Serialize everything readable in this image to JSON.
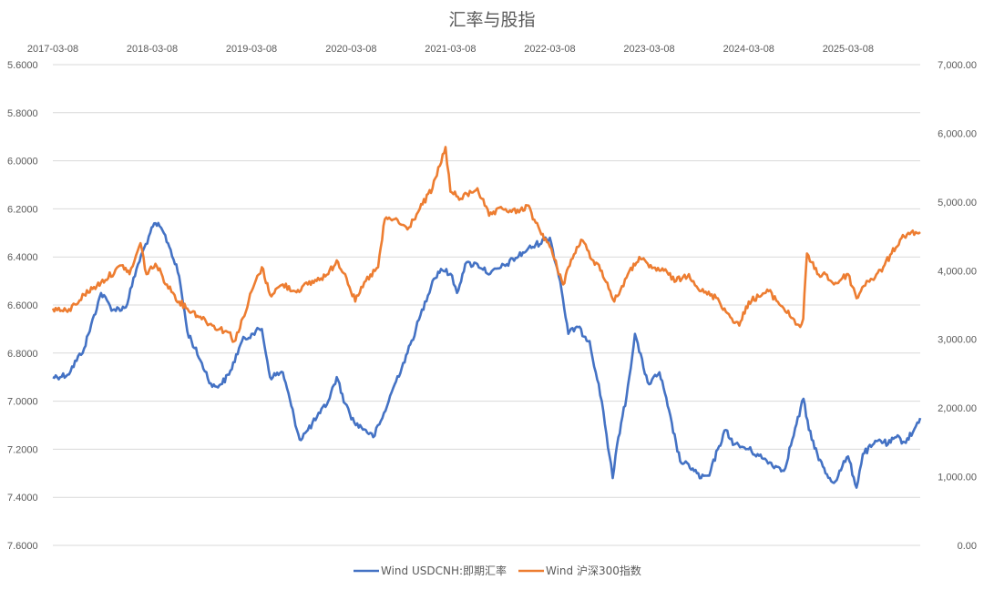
{
  "chart_data": {
    "type": "line",
    "title": "汇率与股指",
    "x_ticks": [
      "2017-03-08",
      "2018-03-08",
      "2019-03-08",
      "2020-03-08",
      "2021-03-08",
      "2022-03-08",
      "2023-03-08",
      "2024-03-08",
      "2025-03-08"
    ],
    "x_range": [
      "2017-03-08",
      "2025-11-28"
    ],
    "x_axis_position": "top",
    "y_left": {
      "inverted": true,
      "range": [
        5.6,
        7.6
      ],
      "ticks": [
        "5.6000",
        "5.8000",
        "6.0000",
        "6.2000",
        "6.4000",
        "6.6000",
        "6.8000",
        "7.0000",
        "7.2000",
        "7.4000",
        "7.6000"
      ]
    },
    "y_right": {
      "range": [
        0,
        7000
      ],
      "ticks": [
        "0.00",
        "1,000.00",
        "2,000.00",
        "3,000.00",
        "4,000.00",
        "5,000.00",
        "6,000.00",
        "7,000.00"
      ]
    },
    "grid": true,
    "legend_position": "bottom",
    "series": [
      {
        "name": "Wind USDCNH:即期汇率",
        "axis": "left",
        "color": "#4472c4",
        "points": [
          [
            "2017-03-08",
            6.9
          ],
          [
            "2017-05-01",
            6.89
          ],
          [
            "2017-07-01",
            6.78
          ],
          [
            "2017-09-01",
            6.55
          ],
          [
            "2017-10-15",
            6.62
          ],
          [
            "2017-12-01",
            6.61
          ],
          [
            "2018-01-15",
            6.43
          ],
          [
            "2018-03-01",
            6.3
          ],
          [
            "2018-03-20",
            6.26
          ],
          [
            "2018-04-15",
            6.29
          ],
          [
            "2018-05-15",
            6.37
          ],
          [
            "2018-06-15",
            6.48
          ],
          [
            "2018-07-15",
            6.71
          ],
          [
            "2018-09-01",
            6.83
          ],
          [
            "2018-10-15",
            6.94
          ],
          [
            "2018-11-15",
            6.93
          ],
          [
            "2018-12-15",
            6.89
          ],
          [
            "2019-02-01",
            6.75
          ],
          [
            "2019-03-08",
            6.72
          ],
          [
            "2019-04-15",
            6.7
          ],
          [
            "2019-05-15",
            6.9
          ],
          [
            "2019-07-01",
            6.88
          ],
          [
            "2019-08-01",
            7.02
          ],
          [
            "2019-09-01",
            7.16
          ],
          [
            "2019-10-01",
            7.12
          ],
          [
            "2019-11-15",
            7.05
          ],
          [
            "2019-12-15",
            7.0
          ],
          [
            "2020-01-15",
            6.9
          ],
          [
            "2020-02-15",
            7.01
          ],
          [
            "2020-03-20",
            7.09
          ],
          [
            "2020-05-01",
            7.12
          ],
          [
            "2020-05-28",
            7.15
          ],
          [
            "2020-07-01",
            7.07
          ],
          [
            "2020-08-15",
            6.93
          ],
          [
            "2020-10-01",
            6.8
          ],
          [
            "2020-11-01",
            6.7
          ],
          [
            "2021-01-01",
            6.5
          ],
          [
            "2021-02-01",
            6.45
          ],
          [
            "2021-03-08",
            6.47
          ],
          [
            "2021-04-01",
            6.55
          ],
          [
            "2021-05-01",
            6.43
          ],
          [
            "2021-06-15",
            6.43
          ],
          [
            "2021-08-01",
            6.47
          ],
          [
            "2021-10-01",
            6.43
          ],
          [
            "2021-12-15",
            6.37
          ],
          [
            "2022-02-15",
            6.33
          ],
          [
            "2022-03-08",
            6.32
          ],
          [
            "2022-04-15",
            6.5
          ],
          [
            "2022-05-15",
            6.72
          ],
          [
            "2022-06-15",
            6.69
          ],
          [
            "2022-08-01",
            6.75
          ],
          [
            "2022-09-15",
            7.0
          ],
          [
            "2022-10-25",
            7.32
          ],
          [
            "2022-11-15",
            7.15
          ],
          [
            "2022-12-15",
            6.98
          ],
          [
            "2023-01-15",
            6.72
          ],
          [
            "2023-02-15",
            6.86
          ],
          [
            "2023-03-08",
            6.93
          ],
          [
            "2023-04-15",
            6.88
          ],
          [
            "2023-05-15",
            7.02
          ],
          [
            "2023-06-30",
            7.25
          ],
          [
            "2023-08-15",
            7.28
          ],
          [
            "2023-09-15",
            7.32
          ],
          [
            "2023-10-15",
            7.31
          ],
          [
            "2023-11-15",
            7.2
          ],
          [
            "2023-12-15",
            7.12
          ],
          [
            "2024-01-15",
            7.18
          ],
          [
            "2024-03-08",
            7.2
          ],
          [
            "2024-05-01",
            7.24
          ],
          [
            "2024-06-15",
            7.27
          ],
          [
            "2024-07-15",
            7.29
          ],
          [
            "2024-08-15",
            7.16
          ],
          [
            "2024-09-25",
            6.99
          ],
          [
            "2024-10-15",
            7.12
          ],
          [
            "2024-11-15",
            7.22
          ],
          [
            "2024-12-15",
            7.3
          ],
          [
            "2025-01-15",
            7.34
          ],
          [
            "2025-02-15",
            7.27
          ],
          [
            "2025-03-08",
            7.23
          ],
          [
            "2025-04-08",
            7.36
          ],
          [
            "2025-05-01",
            7.22
          ],
          [
            "2025-06-01",
            7.19
          ],
          [
            "2025-07-01",
            7.16
          ],
          [
            "2025-08-01",
            7.18
          ],
          [
            "2025-09-01",
            7.15
          ],
          [
            "2025-10-01",
            7.17
          ],
          [
            "2025-11-01",
            7.13
          ],
          [
            "2025-11-28",
            7.07
          ]
        ]
      },
      {
        "name": "Wind 沪深300指数",
        "axis": "right",
        "color": "#ed7d31",
        "points": [
          [
            "2017-03-08",
            3450
          ],
          [
            "2017-05-01",
            3400
          ],
          [
            "2017-07-01",
            3650
          ],
          [
            "2017-09-01",
            3830
          ],
          [
            "2017-11-20",
            4080
          ],
          [
            "2017-12-15",
            3950
          ],
          [
            "2018-01-24",
            4400
          ],
          [
            "2018-02-15",
            3950
          ],
          [
            "2018-03-20",
            4100
          ],
          [
            "2018-05-01",
            3800
          ],
          [
            "2018-06-15",
            3550
          ],
          [
            "2018-07-15",
            3450
          ],
          [
            "2018-09-01",
            3330
          ],
          [
            "2018-10-15",
            3200
          ],
          [
            "2018-12-15",
            3100
          ],
          [
            "2019-01-03",
            2970
          ],
          [
            "2019-02-15",
            3400
          ],
          [
            "2019-03-08",
            3700
          ],
          [
            "2019-04-15",
            4050
          ],
          [
            "2019-05-15",
            3650
          ],
          [
            "2019-07-01",
            3800
          ],
          [
            "2019-08-15",
            3700
          ],
          [
            "2019-10-01",
            3800
          ],
          [
            "2019-12-15",
            3950
          ],
          [
            "2020-01-15",
            4150
          ],
          [
            "2020-02-15",
            3950
          ],
          [
            "2020-03-23",
            3550
          ],
          [
            "2020-05-01",
            3850
          ],
          [
            "2020-06-15",
            4050
          ],
          [
            "2020-07-10",
            4750
          ],
          [
            "2020-08-15",
            4750
          ],
          [
            "2020-10-01",
            4600
          ],
          [
            "2020-11-15",
            4900
          ],
          [
            "2021-01-01",
            5200
          ],
          [
            "2021-02-18",
            5800
          ],
          [
            "2021-03-08",
            5150
          ],
          [
            "2021-04-15",
            5050
          ],
          [
            "2021-06-15",
            5200
          ],
          [
            "2021-07-28",
            4800
          ],
          [
            "2021-09-15",
            4900
          ],
          [
            "2021-11-15",
            4850
          ],
          [
            "2021-12-15",
            4950
          ],
          [
            "2022-01-15",
            4700
          ],
          [
            "2022-03-08",
            4350
          ],
          [
            "2022-04-26",
            3800
          ],
          [
            "2022-05-15",
            4050
          ],
          [
            "2022-07-01",
            4450
          ],
          [
            "2022-08-15",
            4150
          ],
          [
            "2022-09-15",
            4000
          ],
          [
            "2022-10-31",
            3550
          ],
          [
            "2022-12-15",
            3900
          ],
          [
            "2023-01-31",
            4200
          ],
          [
            "2023-03-08",
            4050
          ],
          [
            "2023-05-01",
            4000
          ],
          [
            "2023-06-15",
            3850
          ],
          [
            "2023-08-01",
            3950
          ],
          [
            "2023-09-15",
            3700
          ],
          [
            "2023-11-15",
            3600
          ],
          [
            "2023-12-15",
            3400
          ],
          [
            "2024-02-02",
            3200
          ],
          [
            "2024-03-08",
            3550
          ],
          [
            "2024-05-20",
            3700
          ],
          [
            "2024-07-15",
            3450
          ],
          [
            "2024-09-13",
            3180
          ],
          [
            "2024-09-24",
            3300
          ],
          [
            "2024-10-08",
            4250
          ],
          [
            "2024-11-15",
            3950
          ],
          [
            "2024-12-15",
            3950
          ],
          [
            "2025-01-15",
            3800
          ],
          [
            "2025-03-08",
            3950
          ],
          [
            "2025-04-08",
            3600
          ],
          [
            "2025-05-15",
            3850
          ],
          [
            "2025-06-15",
            3900
          ],
          [
            "2025-07-15",
            4050
          ],
          [
            "2025-08-15",
            4250
          ],
          [
            "2025-09-15",
            4450
          ],
          [
            "2025-10-15",
            4550
          ],
          [
            "2025-11-28",
            4560
          ]
        ]
      }
    ]
  }
}
